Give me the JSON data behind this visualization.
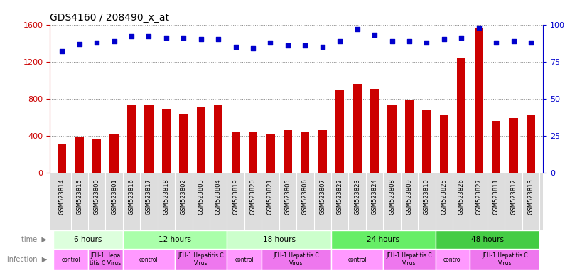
{
  "title": "GDS4160 / 208490_x_at",
  "samples": [
    "GSM523814",
    "GSM523815",
    "GSM523800",
    "GSM523801",
    "GSM523816",
    "GSM523817",
    "GSM523818",
    "GSM523802",
    "GSM523803",
    "GSM523804",
    "GSM523819",
    "GSM523820",
    "GSM523821",
    "GSM523805",
    "GSM523806",
    "GSM523807",
    "GSM523822",
    "GSM523823",
    "GSM523824",
    "GSM523808",
    "GSM523809",
    "GSM523810",
    "GSM523825",
    "GSM523826",
    "GSM523827",
    "GSM523811",
    "GSM523812",
    "GSM523813"
  ],
  "counts": [
    320,
    390,
    370,
    420,
    730,
    740,
    690,
    630,
    710,
    730,
    440,
    450,
    420,
    460,
    450,
    460,
    900,
    960,
    910,
    730,
    790,
    680,
    620,
    1240,
    1560,
    560,
    590,
    620
  ],
  "percentile_ranks": [
    82,
    87,
    88,
    89,
    92,
    92,
    91,
    91,
    90,
    90,
    85,
    84,
    88,
    86,
    86,
    85,
    89,
    97,
    93,
    89,
    89,
    88,
    90,
    91,
    98,
    88,
    89,
    88
  ],
  "bar_color": "#cc0000",
  "dot_color": "#0000cc",
  "ylim_left": [
    0,
    1600
  ],
  "ylim_right": [
    0,
    100
  ],
  "yticks_left": [
    0,
    400,
    800,
    1200,
    1600
  ],
  "yticks_right": [
    0,
    25,
    50,
    75,
    100
  ],
  "time_groups": [
    {
      "label": "6 hours",
      "start": 0,
      "end": 4,
      "color": "#ddffdd"
    },
    {
      "label": "12 hours",
      "start": 4,
      "end": 10,
      "color": "#aaffaa"
    },
    {
      "label": "18 hours",
      "start": 10,
      "end": 16,
      "color": "#ccffcc"
    },
    {
      "label": "24 hours",
      "start": 16,
      "end": 22,
      "color": "#66ee66"
    },
    {
      "label": "48 hours",
      "start": 22,
      "end": 28,
      "color": "#44cc44"
    }
  ],
  "infection_groups": [
    {
      "label": "control",
      "start": 0,
      "end": 2,
      "color": "#ff99ff"
    },
    {
      "label": "JFH-1 Hepa\ntitis C Virus",
      "start": 2,
      "end": 4,
      "color": "#ee77ee"
    },
    {
      "label": "control",
      "start": 4,
      "end": 7,
      "color": "#ff99ff"
    },
    {
      "label": "JFH-1 Hepatitis C\nVirus",
      "start": 7,
      "end": 10,
      "color": "#ee77ee"
    },
    {
      "label": "control",
      "start": 10,
      "end": 12,
      "color": "#ff99ff"
    },
    {
      "label": "JFH-1 Hepatitis C\nVirus",
      "start": 12,
      "end": 16,
      "color": "#ee77ee"
    },
    {
      "label": "control",
      "start": 16,
      "end": 19,
      "color": "#ff99ff"
    },
    {
      "label": "JFH-1 Hepatitis C\nVirus",
      "start": 19,
      "end": 22,
      "color": "#ee77ee"
    },
    {
      "label": "control",
      "start": 22,
      "end": 24,
      "color": "#ff99ff"
    },
    {
      "label": "JFH-1 Hepatitis C\nVirus",
      "start": 24,
      "end": 28,
      "color": "#ee77ee"
    }
  ],
  "grid_color": "#888888",
  "background_color": "#ffffff",
  "tick_label_color_left": "#cc0000",
  "tick_label_color_right": "#0000cc",
  "label_area_color": "#dddddd"
}
